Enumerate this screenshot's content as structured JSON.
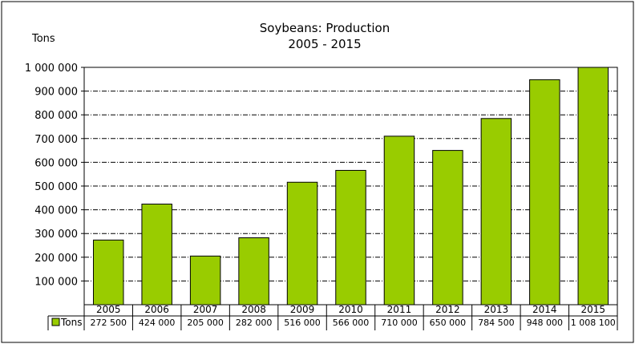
{
  "chart_data": {
    "type": "bar",
    "title": "Soybeans: Production",
    "subtitle": "2005 - 2015",
    "ylabel": "Tons",
    "xlabel": "",
    "ylim": [
      0,
      1000000
    ],
    "yticks": [
      "100 000",
      "200 000",
      "300 000",
      "400 000",
      "500 000",
      "600 000",
      "700 000",
      "800 000",
      "900 000",
      "1 000 000"
    ],
    "ytick_values": [
      100000,
      200000,
      300000,
      400000,
      500000,
      600000,
      700000,
      800000,
      900000,
      1000000
    ],
    "categories": [
      "2005",
      "2006",
      "2007",
      "2008",
      "2009",
      "2010",
      "2011",
      "2012",
      "2013",
      "2014",
      "2015"
    ],
    "series": [
      {
        "name": "Tons",
        "values": [
          272500,
          424000,
          205000,
          282000,
          516000,
          566000,
          710000,
          650000,
          784500,
          948000,
          1008100
        ],
        "labels": [
          "272 500",
          "424 000",
          "205 000",
          "282 000",
          "516 000",
          "566 000",
          "710 000",
          "650 000",
          "784 500",
          "948 000",
          "1 008 100"
        ]
      }
    ],
    "grid": true,
    "legend": "data-table",
    "colors": {
      "bar": "#99cc00",
      "bar_stroke": "#000000",
      "grid": "#000000"
    }
  }
}
